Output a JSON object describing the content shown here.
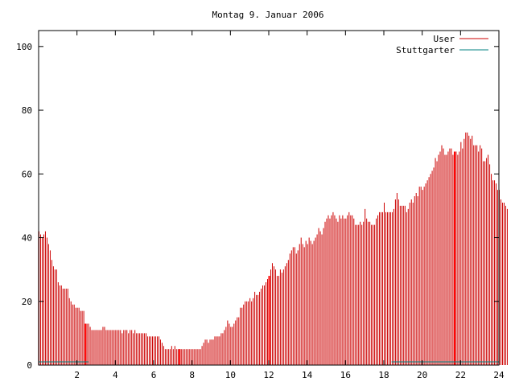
{
  "chart_data": {
    "type": "bar",
    "title": "Montag 9. Januar 2006",
    "xlabel": "",
    "ylabel": "",
    "xlim": [
      0,
      24
    ],
    "ylim": [
      0,
      105
    ],
    "x_ticks": [
      2,
      4,
      6,
      8,
      10,
      12,
      14,
      16,
      18,
      20,
      22,
      24
    ],
    "y_ticks": [
      0,
      20,
      40,
      60,
      80,
      100
    ],
    "grid": false,
    "legend_position": "top-right",
    "legend": [
      {
        "name": "User",
        "color": "#cc0000"
      },
      {
        "name": "Stuttgarter",
        "color": "#008080"
      }
    ],
    "interval_minutes": 5,
    "series": [
      {
        "name": "User",
        "color": "#cc0000",
        "values": [
          42,
          41,
          40,
          41,
          42,
          40,
          38,
          36,
          33,
          31,
          30,
          30,
          26,
          25,
          25,
          24,
          24,
          24,
          24,
          21,
          20,
          19,
          19,
          18,
          18,
          18,
          17,
          17,
          17,
          13,
          13,
          13,
          12,
          11,
          11,
          11,
          11,
          11,
          11,
          11,
          12,
          12,
          11,
          11,
          11,
          11,
          11,
          11,
          11,
          11,
          11,
          11,
          10,
          11,
          11,
          11,
          10,
          11,
          11,
          10,
          11,
          10,
          10,
          10,
          10,
          10,
          10,
          10,
          9,
          9,
          9,
          9,
          9,
          9,
          9,
          9,
          8,
          7,
          6,
          5,
          5,
          5,
          5,
          6,
          5,
          6,
          5,
          5,
          5,
          5,
          5,
          5,
          5,
          5,
          5,
          5,
          5,
          5,
          5,
          5,
          5,
          5,
          6,
          7,
          8,
          8,
          7,
          8,
          8,
          8,
          9,
          9,
          9,
          9,
          10,
          10,
          11,
          12,
          14,
          13,
          12,
          12,
          13,
          14,
          15,
          15,
          18,
          18,
          19,
          20,
          20,
          20,
          21,
          20,
          21,
          23,
          22,
          22,
          23,
          24,
          25,
          25,
          26,
          27,
          28,
          30,
          32,
          31,
          30,
          28,
          28,
          30,
          29,
          30,
          31,
          32,
          33,
          35,
          36,
          37,
          37,
          35,
          36,
          38,
          40,
          38,
          37,
          39,
          38,
          40,
          39,
          38,
          39,
          40,
          41,
          43,
          42,
          41,
          43,
          45,
          46,
          47,
          46,
          47,
          48,
          47,
          46,
          45,
          47,
          46,
          47,
          46,
          46,
          47,
          48,
          47,
          47,
          46,
          44,
          44,
          44,
          45,
          44,
          45,
          49,
          46,
          45,
          45,
          44,
          44,
          44,
          46,
          47,
          48,
          48,
          48,
          51,
          48,
          48,
          48,
          48,
          48,
          49,
          52,
          54,
          52,
          50,
          50,
          50,
          50,
          48,
          49,
          51,
          52,
          51,
          53,
          54,
          53,
          56,
          56,
          55,
          56,
          57,
          58,
          59,
          60,
          61,
          62,
          65,
          64,
          66,
          67,
          69,
          68,
          66,
          66,
          67,
          68,
          68,
          66,
          67,
          67,
          66,
          67,
          70,
          68,
          71,
          73,
          73,
          72,
          71,
          72,
          69,
          69,
          69,
          67,
          69,
          68,
          64,
          64,
          65,
          66,
          63,
          60,
          58,
          58,
          57,
          55,
          55,
          52,
          51,
          51,
          50,
          49
        ]
      },
      {
        "name": "Stuttgarter",
        "color": "#008080",
        "segments": [
          {
            "x_start": 0,
            "x_end": 2.6,
            "value": 1
          },
          {
            "x_start": 18.4,
            "x_end": 24,
            "value": 1
          }
        ]
      }
    ],
    "highlight_bars_x": [
      2.42,
      7.33,
      12.0,
      21.67
    ]
  }
}
